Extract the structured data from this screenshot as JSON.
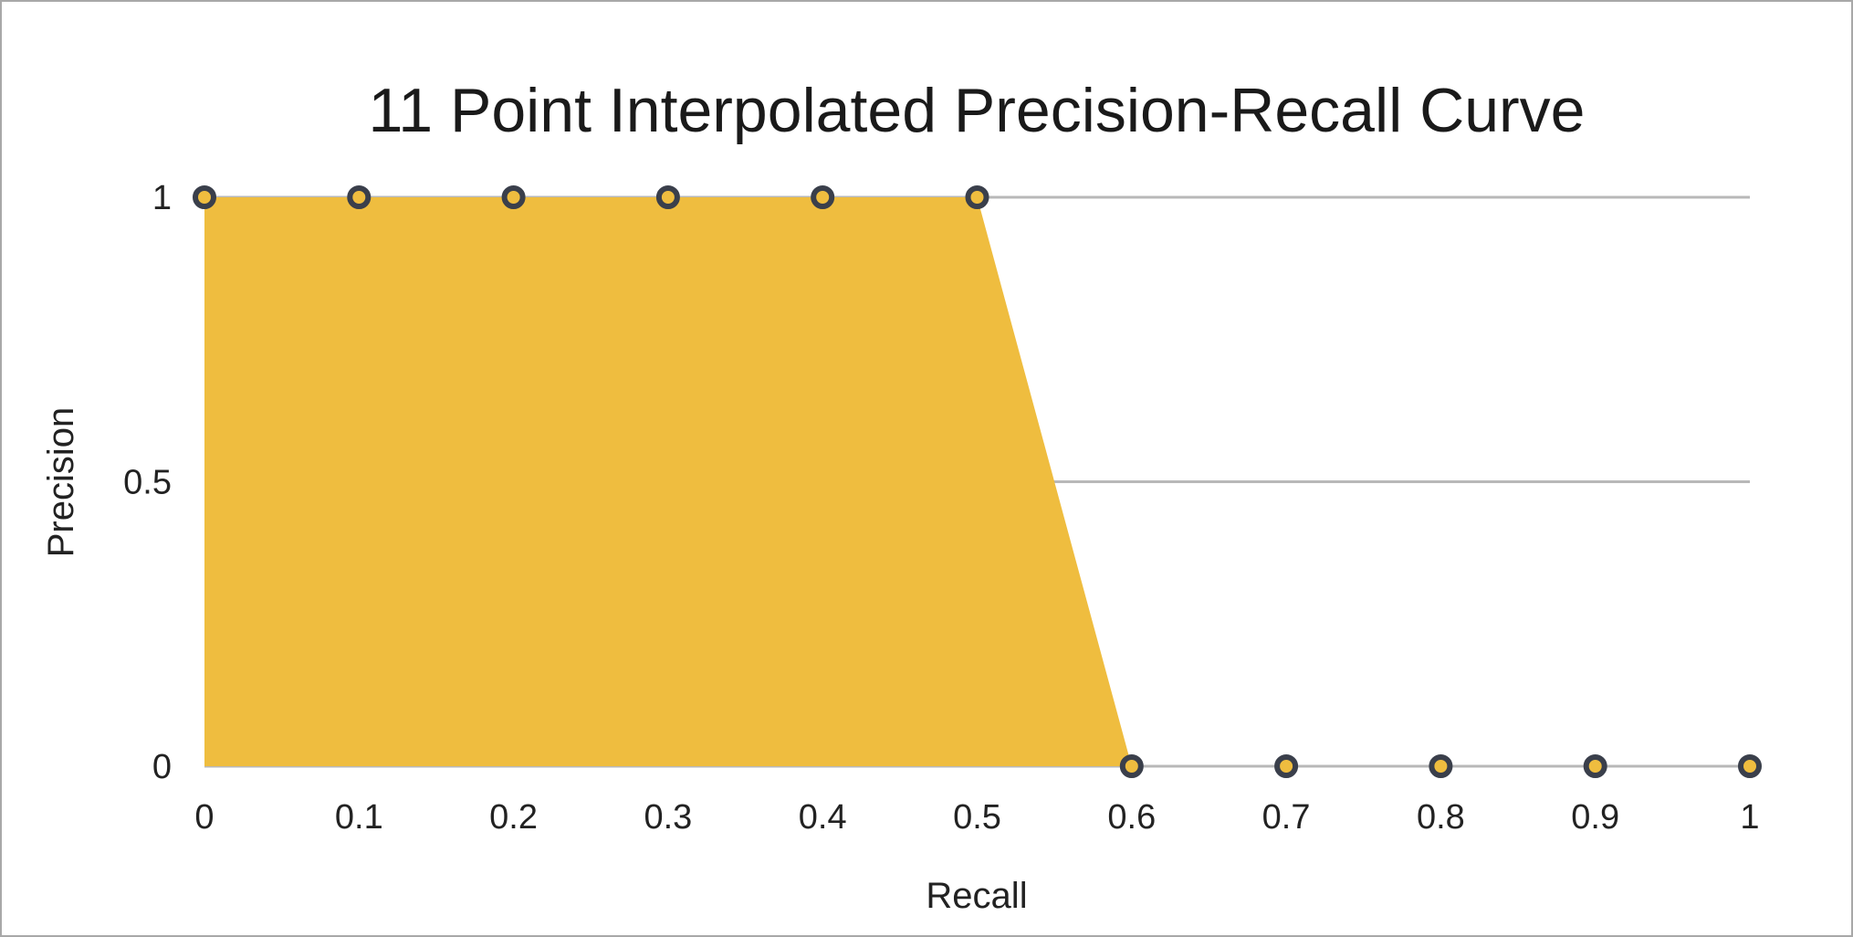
{
  "chart_data": {
    "type": "area",
    "title": "11 Point Interpolated Precision-Recall Curve",
    "xlabel": "Recall",
    "ylabel": "Precision",
    "x": [
      0,
      0.1,
      0.2,
      0.3,
      0.4,
      0.5,
      0.6,
      0.7,
      0.8,
      0.9,
      1
    ],
    "y": [
      1,
      1,
      1,
      1,
      1,
      1,
      0,
      0,
      0,
      0,
      0
    ],
    "x_tick_labels": [
      "0",
      "0.1",
      "0.2",
      "0.3",
      "0.4",
      "0.5",
      "0.6",
      "0.7",
      "0.8",
      "0.9",
      "1"
    ],
    "y_ticks": [
      0,
      0.5,
      1
    ],
    "y_tick_labels": [
      "0",
      "0.5",
      "1"
    ],
    "xlim": [
      0,
      1
    ],
    "ylim": [
      0,
      1
    ],
    "grid": true,
    "legend": false,
    "fill_color": "#EFBD3F",
    "marker_stroke_color": "#3a3f4b",
    "marker_fill_color": "#EFBD3F",
    "gridline_color": "#b8b8b8"
  }
}
